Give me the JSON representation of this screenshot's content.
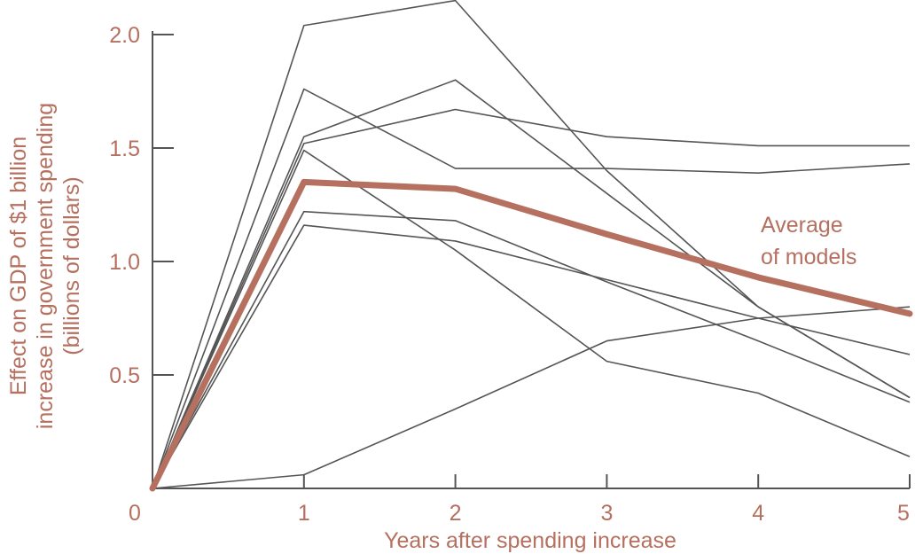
{
  "chart_data": {
    "type": "line",
    "title": "",
    "xlabel": "Years after spending increase",
    "ylabel_lines": [
      "Effect on GDP of $1 billion",
      "increase in government spending",
      "(billions of dollars)"
    ],
    "xlim": [
      0,
      5
    ],
    "ylim": [
      0,
      2.0
    ],
    "x_ticks": [
      0,
      1,
      2,
      3,
      4,
      5
    ],
    "x_tick_labels": [
      "0",
      "1",
      "2",
      "3",
      "4",
      "5"
    ],
    "y_ticks": [
      0.5,
      1.0,
      1.5,
      2.0
    ],
    "y_tick_labels": [
      "0.5",
      "1.0",
      "1.5",
      "2.0"
    ],
    "grid": false,
    "x": [
      0,
      1,
      2,
      3,
      4,
      5
    ],
    "series": [
      {
        "values": [
          0,
          2.04,
          2.15,
          1.4,
          0.8,
          0.4
        ]
      },
      {
        "values": [
          0,
          1.76,
          1.41,
          1.41,
          1.39,
          1.43
        ]
      },
      {
        "values": [
          0,
          1.55,
          1.8,
          1.3,
          0.8,
          0.4
        ]
      },
      {
        "values": [
          0,
          1.52,
          1.67,
          1.55,
          1.51,
          1.51
        ]
      },
      {
        "values": [
          0,
          1.49,
          1.05,
          0.56,
          0.42,
          0.14
        ]
      },
      {
        "values": [
          0,
          1.22,
          1.18,
          0.91,
          0.65,
          0.38
        ]
      },
      {
        "values": [
          0,
          1.16,
          1.09,
          0.92,
          0.75,
          0.59
        ]
      },
      {
        "values": [
          0,
          0.06,
          0.35,
          0.65,
          0.75,
          0.8
        ]
      }
    ],
    "average": {
      "name": "Average of models",
      "label_lines": [
        "Average",
        "of models"
      ],
      "values": [
        0,
        1.35,
        1.32,
        1.12,
        0.93,
        0.77
      ]
    },
    "colors": {
      "model_line": "#555555",
      "average_line": "#b5705f",
      "axis": "#555555",
      "text": "#b5705f"
    }
  }
}
